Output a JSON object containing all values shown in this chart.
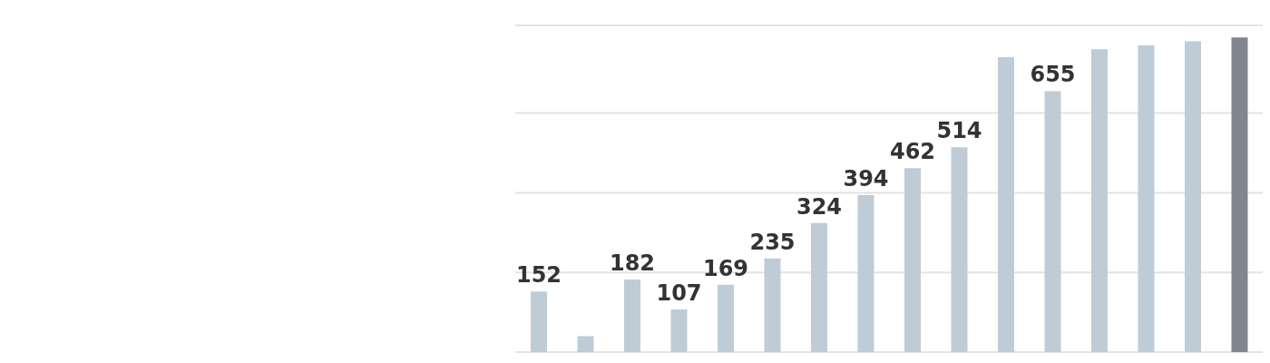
{
  "chart_data": {
    "type": "bar",
    "categories": [
      null,
      null,
      null,
      null,
      null,
      null,
      null,
      null,
      null,
      null,
      null,
      null,
      null,
      null,
      null,
      null
    ],
    "values": [
      152,
      40,
      182,
      107,
      169,
      235,
      324,
      394,
      462,
      514,
      740,
      655,
      760,
      770,
      780,
      790
    ],
    "value_labels": [
      "152",
      null,
      "182",
      "107",
      "169",
      "235",
      "324",
      "394",
      "462",
      "514",
      null,
      "655",
      null,
      null,
      null,
      null
    ],
    "colors": [
      "#bfccd6",
      "#bfccd6",
      "#bfccd6",
      "#bfccd6",
      "#bfccd6",
      "#bfccd6",
      "#bfccd6",
      "#bfccd6",
      "#bfccd6",
      "#bfccd6",
      "#bfccd6",
      "#bfccd6",
      "#bfccd6",
      "#bfccd6",
      "#bfccd6",
      "#7f868e"
    ],
    "ylim": [
      0,
      820
    ],
    "yticks": [
      {
        "value": 200,
        "label": null
      },
      {
        "value": 400,
        "label": null
      },
      {
        "value": 600,
        "label": null
      }
    ],
    "grid": "y"
  }
}
